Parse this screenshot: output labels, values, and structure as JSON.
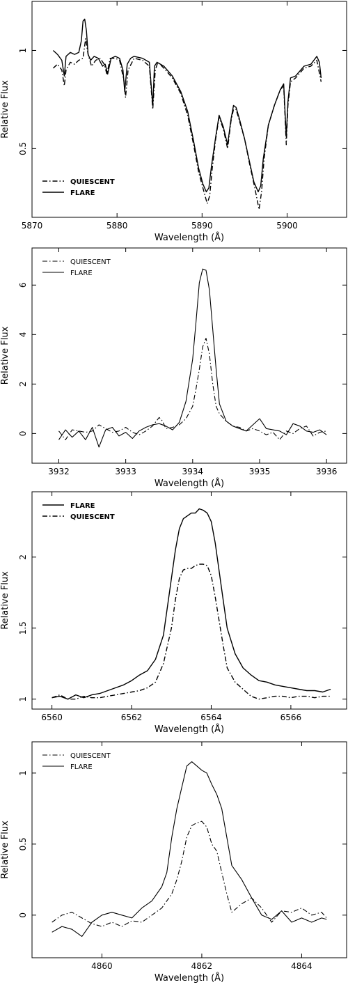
{
  "chart_data": [
    {
      "type": "line",
      "xlabel": "Wavelength (Å)",
      "ylabel": "Relative Flux",
      "xlim": [
        5870,
        5907
      ],
      "ylim": [
        0.15,
        1.25
      ],
      "xticks": [
        5870,
        5880,
        5890,
        5900
      ],
      "yticks": [
        0.5,
        1
      ],
      "legend_position": "bottom-left",
      "legend_style": "bold",
      "series": [
        {
          "name": "QUIESCENT",
          "style": "dashdot",
          "x": [
            5872.5,
            5873.0,
            5873.5,
            5873.8,
            5874.0,
            5874.5,
            5875.0,
            5875.5,
            5876.0,
            5876.3,
            5876.6,
            5877.0,
            5877.5,
            5878.0,
            5878.5,
            5878.8,
            5879.2,
            5879.8,
            5880.3,
            5880.8,
            5881.0,
            5881.3,
            5882.0,
            5883.0,
            5883.8,
            5884.2,
            5884.5,
            5884.8,
            5885.5,
            5886.5,
            5887.5,
            5888.3,
            5889.0,
            5889.6,
            5890.1,
            5890.6,
            5890.9,
            5891.2,
            5891.6,
            5892.0,
            5892.5,
            5893.0,
            5893.4,
            5893.7,
            5894.0,
            5894.4,
            5895.0,
            5895.6,
            5896.2,
            5896.7,
            5897.0,
            5897.3,
            5897.8,
            5898.5,
            5899.2,
            5899.6,
            5899.9,
            5900.1,
            5900.4,
            5901.0,
            5902.0,
            5902.8,
            5903.5,
            5904.0
          ],
          "y": [
            0.91,
            0.93,
            0.9,
            0.82,
            0.9,
            0.94,
            0.93,
            0.95,
            0.96,
            1.06,
            0.98,
            0.92,
            0.95,
            0.96,
            0.93,
            0.88,
            0.96,
            0.96,
            0.95,
            0.85,
            0.76,
            0.9,
            0.96,
            0.95,
            0.92,
            0.7,
            0.9,
            0.94,
            0.91,
            0.86,
            0.78,
            0.67,
            0.52,
            0.38,
            0.3,
            0.22,
            0.26,
            0.4,
            0.55,
            0.66,
            0.6,
            0.5,
            0.64,
            0.7,
            0.7,
            0.64,
            0.55,
            0.42,
            0.3,
            0.19,
            0.28,
            0.45,
            0.62,
            0.72,
            0.8,
            0.82,
            0.52,
            0.72,
            0.84,
            0.86,
            0.91,
            0.92,
            0.95,
            0.84
          ]
        },
        {
          "name": "FLARE",
          "style": "solid",
          "x": [
            5872.5,
            5873.0,
            5873.5,
            5873.8,
            5874.0,
            5874.5,
            5875.0,
            5875.5,
            5875.8,
            5876.0,
            5876.2,
            5876.4,
            5876.6,
            5876.9,
            5877.3,
            5877.8,
            5878.3,
            5878.6,
            5878.9,
            5879.3,
            5879.8,
            5880.3,
            5880.7,
            5880.9,
            5881.2,
            5881.6,
            5882.0,
            5883.0,
            5883.8,
            5884.2,
            5884.4,
            5884.7,
            5885.5,
            5886.5,
            5887.5,
            5888.3,
            5889.0,
            5889.6,
            5890.1,
            5890.5,
            5890.8,
            5891.1,
            5891.6,
            5892.0,
            5892.5,
            5893.0,
            5893.4,
            5893.7,
            5894.0,
            5894.4,
            5895.0,
            5895.6,
            5896.1,
            5896.6,
            5896.9,
            5897.2,
            5897.8,
            5898.5,
            5899.2,
            5899.6,
            5899.9,
            5900.1,
            5900.4,
            5901.0,
            5902.0,
            5902.8,
            5903.5,
            5903.8,
            5904.0
          ],
          "y": [
            1.0,
            0.98,
            0.95,
            0.87,
            0.97,
            0.99,
            0.98,
            0.99,
            1.05,
            1.15,
            1.16,
            1.1,
            0.98,
            0.95,
            0.97,
            0.96,
            0.92,
            0.93,
            0.88,
            0.96,
            0.97,
            0.96,
            0.9,
            0.79,
            0.93,
            0.96,
            0.97,
            0.96,
            0.94,
            0.72,
            0.92,
            0.94,
            0.92,
            0.87,
            0.79,
            0.69,
            0.54,
            0.4,
            0.32,
            0.28,
            0.3,
            0.41,
            0.56,
            0.67,
            0.61,
            0.52,
            0.65,
            0.72,
            0.71,
            0.65,
            0.55,
            0.43,
            0.33,
            0.28,
            0.31,
            0.45,
            0.62,
            0.72,
            0.8,
            0.83,
            0.56,
            0.74,
            0.86,
            0.87,
            0.92,
            0.93,
            0.97,
            0.94,
            0.86
          ]
        }
      ]
    },
    {
      "type": "line",
      "xlabel": "Wavelength (Å)",
      "ylabel": "Relative Flux",
      "xlim": [
        3931.6,
        3936.3
      ],
      "ylim": [
        -1.2,
        7.5
      ],
      "xticks": [
        3932,
        3933,
        3934,
        3935,
        3936
      ],
      "yticks": [
        0,
        2,
        4,
        6
      ],
      "legend_position": "top-left",
      "legend_style": "normal",
      "series": [
        {
          "name": "QUIESCENT",
          "style": "dashdot",
          "x": [
            3932.0,
            3932.1,
            3932.2,
            3932.3,
            3932.4,
            3932.5,
            3932.6,
            3932.7,
            3932.8,
            3932.9,
            3933.0,
            3933.1,
            3933.2,
            3933.3,
            3933.4,
            3933.5,
            3933.55,
            3933.6,
            3933.7,
            3933.8,
            3933.9,
            3934.0,
            3934.05,
            3934.1,
            3934.15,
            3934.2,
            3934.25,
            3934.3,
            3934.35,
            3934.4,
            3934.5,
            3934.6,
            3934.7,
            3934.8,
            3934.9,
            3935.0,
            3935.1,
            3935.2,
            3935.3,
            3935.4,
            3935.5,
            3935.6,
            3935.7,
            3935.8,
            3935.9,
            3936.0
          ],
          "y": [
            0.1,
            -0.25,
            0.15,
            0.1,
            0.05,
            0.1,
            0.35,
            0.2,
            0.05,
            0.1,
            0.25,
            0.05,
            -0.05,
            0.1,
            0.3,
            0.65,
            0.5,
            0.2,
            0.25,
            0.35,
            0.6,
            1.1,
            1.8,
            2.6,
            3.5,
            3.85,
            3.2,
            2.0,
            1.1,
            0.8,
            0.5,
            0.3,
            0.25,
            0.1,
            0.2,
            0.1,
            -0.05,
            0.05,
            -0.25,
            0.1,
            0.0,
            0.2,
            0.3,
            -0.1,
            0.05,
            0.1
          ]
        },
        {
          "name": "FLARE",
          "style": "solid",
          "x": [
            3932.0,
            3932.1,
            3932.2,
            3932.3,
            3932.4,
            3932.5,
            3932.6,
            3932.7,
            3932.8,
            3932.9,
            3933.0,
            3933.1,
            3933.2,
            3933.3,
            3933.4,
            3933.5,
            3933.6,
            3933.7,
            3933.8,
            3933.9,
            3934.0,
            3934.05,
            3934.1,
            3934.15,
            3934.2,
            3934.25,
            3934.3,
            3934.35,
            3934.4,
            3934.5,
            3934.6,
            3934.7,
            3934.8,
            3934.9,
            3935.0,
            3935.1,
            3935.2,
            3935.3,
            3935.4,
            3935.5,
            3935.6,
            3935.7,
            3935.8,
            3935.9,
            3936.0
          ],
          "y": [
            -0.25,
            0.15,
            -0.15,
            0.1,
            -0.25,
            0.25,
            -0.55,
            0.15,
            0.25,
            -0.1,
            0.05,
            -0.2,
            0.1,
            0.25,
            0.35,
            0.4,
            0.3,
            0.15,
            0.45,
            1.3,
            3.0,
            4.5,
            6.1,
            6.65,
            6.6,
            5.8,
            4.2,
            2.6,
            1.2,
            0.5,
            0.3,
            0.2,
            0.1,
            0.35,
            0.6,
            0.2,
            0.15,
            0.1,
            -0.05,
            0.4,
            0.3,
            0.1,
            0.05,
            0.15,
            -0.05
          ]
        }
      ]
    },
    {
      "type": "line",
      "xlabel": "Wavelength (Å)",
      "ylabel": "Relative Flux",
      "xlim": [
        6559.5,
        6567.4
      ],
      "ylim": [
        0.93,
        2.46
      ],
      "xticks": [
        6560,
        6562,
        6564,
        6566
      ],
      "yticks": [
        1,
        1.5,
        2
      ],
      "legend_position": "top-left",
      "legend_style": "bold",
      "series": [
        {
          "name": "FLARE",
          "style": "solid",
          "x": [
            6560.0,
            6560.2,
            6560.4,
            6560.6,
            6560.8,
            6561.0,
            6561.2,
            6561.4,
            6561.6,
            6561.8,
            6562.0,
            6562.2,
            6562.4,
            6562.6,
            6562.8,
            6563.0,
            6563.1,
            6563.2,
            6563.3,
            6563.4,
            6563.5,
            6563.6,
            6563.7,
            6563.8,
            6563.9,
            6564.0,
            6564.1,
            6564.2,
            6564.3,
            6564.4,
            6564.6,
            6564.8,
            6565.0,
            6565.2,
            6565.4,
            6565.6,
            6565.8,
            6566.0,
            6566.2,
            6566.4,
            6566.6,
            6566.8,
            6567.0
          ],
          "y": [
            1.01,
            1.02,
            1.0,
            1.03,
            1.01,
            1.03,
            1.04,
            1.06,
            1.08,
            1.1,
            1.13,
            1.17,
            1.2,
            1.28,
            1.45,
            1.85,
            2.05,
            2.2,
            2.27,
            2.29,
            2.31,
            2.31,
            2.34,
            2.33,
            2.31,
            2.25,
            2.1,
            1.9,
            1.7,
            1.5,
            1.32,
            1.22,
            1.17,
            1.13,
            1.12,
            1.1,
            1.09,
            1.08,
            1.07,
            1.06,
            1.06,
            1.05,
            1.07
          ]
        },
        {
          "name": "QUIESCENT",
          "style": "dashdot",
          "x": [
            6560.0,
            6560.2,
            6560.4,
            6560.6,
            6560.8,
            6561.0,
            6561.2,
            6561.4,
            6561.6,
            6561.8,
            6562.0,
            6562.2,
            6562.4,
            6562.6,
            6562.8,
            6563.0,
            6563.1,
            6563.2,
            6563.3,
            6563.4,
            6563.5,
            6563.6,
            6563.7,
            6563.8,
            6563.9,
            6564.0,
            6564.1,
            6564.2,
            6564.3,
            6564.4,
            6564.6,
            6564.8,
            6565.0,
            6565.2,
            6565.4,
            6565.6,
            6565.8,
            6566.0,
            6566.2,
            6566.4,
            6566.6,
            6566.8,
            6567.0
          ],
          "y": [
            1.01,
            1.03,
            1.0,
            1.0,
            1.02,
            1.01,
            1.01,
            1.02,
            1.03,
            1.04,
            1.05,
            1.06,
            1.08,
            1.12,
            1.25,
            1.5,
            1.7,
            1.85,
            1.91,
            1.92,
            1.92,
            1.94,
            1.95,
            1.95,
            1.94,
            1.87,
            1.72,
            1.55,
            1.38,
            1.22,
            1.12,
            1.07,
            1.02,
            1.0,
            1.01,
            1.02,
            1.02,
            1.01,
            1.02,
            1.02,
            1.01,
            1.02,
            1.02
          ]
        }
      ]
    },
    {
      "type": "line",
      "xlabel": "Wavelength (Å)",
      "ylabel": "Relative Flux",
      "xlim": [
        4858.6,
        4864.9
      ],
      "ylim": [
        -0.3,
        1.22
      ],
      "xticks": [
        4860,
        4862,
        4864
      ],
      "yticks": [
        0,
        0.5,
        1
      ],
      "legend_position": "top-left",
      "legend_style": "normal",
      "series": [
        {
          "name": "QUIESCENT",
          "style": "dashdot",
          "x": [
            4859.0,
            4859.2,
            4859.4,
            4859.6,
            4859.8,
            4860.0,
            4860.2,
            4860.4,
            4860.6,
            4860.8,
            4861.0,
            4861.2,
            4861.4,
            4861.5,
            4861.6,
            4861.7,
            4861.8,
            4861.9,
            4862.0,
            4862.1,
            4862.2,
            4862.3,
            4862.4,
            4862.5,
            4862.6,
            4862.8,
            4863.0,
            4863.2,
            4863.4,
            4863.6,
            4863.8,
            4864.0,
            4864.2,
            4864.4,
            4864.5
          ],
          "y": [
            -0.05,
            0.0,
            0.02,
            -0.02,
            -0.06,
            -0.08,
            -0.05,
            -0.08,
            -0.04,
            -0.05,
            0.0,
            0.05,
            0.15,
            0.25,
            0.38,
            0.55,
            0.63,
            0.65,
            0.66,
            0.62,
            0.5,
            0.45,
            0.3,
            0.15,
            0.02,
            0.08,
            0.12,
            0.05,
            -0.05,
            0.03,
            0.02,
            0.05,
            0.0,
            0.02,
            -0.02
          ]
        },
        {
          "name": "FLARE",
          "style": "solid",
          "x": [
            4859.0,
            4859.2,
            4859.4,
            4859.6,
            4859.8,
            4860.0,
            4860.2,
            4860.4,
            4860.6,
            4860.8,
            4861.0,
            4861.2,
            4861.3,
            4861.4,
            4861.5,
            4861.6,
            4861.7,
            4861.8,
            4861.9,
            4862.0,
            4862.1,
            4862.2,
            4862.3,
            4862.4,
            4862.5,
            4862.6,
            4862.8,
            4863.0,
            4863.2,
            4863.4,
            4863.6,
            4863.8,
            4864.0,
            4864.2,
            4864.4,
            4864.5
          ],
          "y": [
            -0.12,
            -0.08,
            -0.1,
            -0.15,
            -0.05,
            0.0,
            0.02,
            0.0,
            -0.02,
            0.05,
            0.1,
            0.2,
            0.3,
            0.55,
            0.75,
            0.9,
            1.05,
            1.08,
            1.05,
            1.02,
            1.0,
            0.92,
            0.85,
            0.75,
            0.55,
            0.35,
            0.25,
            0.12,
            0.0,
            -0.03,
            0.03,
            -0.05,
            -0.02,
            -0.05,
            -0.02,
            -0.03
          ]
        }
      ]
    }
  ]
}
